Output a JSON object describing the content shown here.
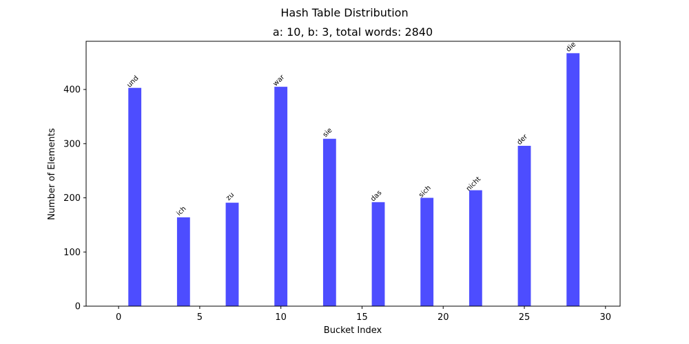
{
  "chart_data": {
    "type": "bar",
    "suptitle": "Hash Table Distribution",
    "title": "a: 10, b: 3, total words: 2840",
    "xlabel": "Bucket Index",
    "ylabel": "Number of Elements",
    "xlim": [
      -2,
      30.9
    ],
    "ylim": [
      0,
      489
    ],
    "xticks": [
      0,
      5,
      10,
      15,
      20,
      25,
      30
    ],
    "yticks": [
      0,
      100,
      200,
      300,
      400
    ],
    "bar_color": "#4d4dff",
    "bars": [
      {
        "x": 1,
        "value": 403,
        "label": "und"
      },
      {
        "x": 4,
        "value": 164,
        "label": "ich"
      },
      {
        "x": 7,
        "value": 191,
        "label": "zu"
      },
      {
        "x": 10,
        "value": 405,
        "label": "war"
      },
      {
        "x": 13,
        "value": 309,
        "label": "sie"
      },
      {
        "x": 16,
        "value": 192,
        "label": "das"
      },
      {
        "x": 19,
        "value": 200,
        "label": "sich"
      },
      {
        "x": 22,
        "value": 214,
        "label": "nicht"
      },
      {
        "x": 25,
        "value": 296,
        "label": "der"
      },
      {
        "x": 28,
        "value": 467,
        "label": "die"
      }
    ]
  }
}
